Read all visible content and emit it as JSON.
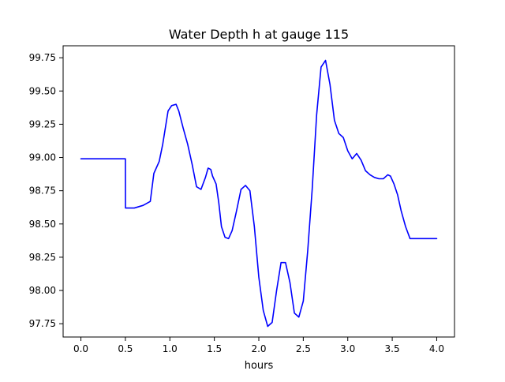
{
  "chart_data": {
    "type": "line",
    "title": "Water Depth h at gauge 115",
    "xlabel": "hours",
    "ylabel": "",
    "xlim": [
      -0.2,
      4.2
    ],
    "ylim": [
      97.65,
      99.84
    ],
    "x_ticks": [
      0.0,
      0.5,
      1.0,
      1.5,
      2.0,
      2.5,
      3.0,
      3.5,
      4.0
    ],
    "x_tick_labels": [
      "0.0",
      "0.5",
      "1.0",
      "1.5",
      "2.0",
      "2.5",
      "3.0",
      "3.5",
      "4.0"
    ],
    "y_ticks": [
      97.75,
      98.0,
      98.25,
      98.5,
      98.75,
      99.0,
      99.25,
      99.5,
      99.75
    ],
    "y_tick_labels": [
      "97.75",
      "98.00",
      "98.25",
      "98.50",
      "98.75",
      "99.00",
      "99.25",
      "99.50",
      "99.75"
    ],
    "grid": false,
    "legend": "none",
    "line_color": "#0000ff",
    "series": [
      {
        "x": [
          0.0,
          0.1,
          0.2,
          0.3,
          0.4,
          0.48,
          0.5,
          0.501,
          0.6,
          0.7,
          0.78,
          0.82,
          0.88,
          0.92,
          0.98,
          1.02,
          1.07,
          1.1,
          1.15,
          1.2,
          1.25,
          1.3,
          1.35,
          1.4,
          1.43,
          1.46,
          1.48,
          1.52,
          1.55,
          1.58,
          1.62,
          1.66,
          1.7,
          1.75,
          1.8,
          1.85,
          1.9,
          1.95,
          2.0,
          2.05,
          2.1,
          2.15,
          2.2,
          2.25,
          2.3,
          2.35,
          2.4,
          2.45,
          2.5,
          2.55,
          2.6,
          2.65,
          2.7,
          2.75,
          2.8,
          2.85,
          2.9,
          2.95,
          3.0,
          3.05,
          3.1,
          3.15,
          3.2,
          3.25,
          3.3,
          3.35,
          3.4,
          3.45,
          3.48,
          3.52,
          3.56,
          3.6,
          3.65,
          3.7,
          3.75,
          3.78,
          3.82,
          3.86,
          3.9,
          3.94,
          3.97,
          4.0
        ],
        "y": [
          98.99,
          98.99,
          98.99,
          98.99,
          98.99,
          98.99,
          98.99,
          98.62,
          98.62,
          98.64,
          98.67,
          98.88,
          98.97,
          99.1,
          99.35,
          99.39,
          99.4,
          99.35,
          99.22,
          99.1,
          98.95,
          98.78,
          98.76,
          98.85,
          98.92,
          98.91,
          98.86,
          98.8,
          98.66,
          98.48,
          98.4,
          98.39,
          98.45,
          98.6,
          98.76,
          98.79,
          98.75,
          98.48,
          98.1,
          97.85,
          97.73,
          97.76,
          98.0,
          98.21,
          98.21,
          98.06,
          97.83,
          97.8,
          97.92,
          98.3,
          98.76,
          99.32,
          99.68,
          99.73,
          99.55,
          99.28,
          99.18,
          99.15,
          99.05,
          98.99,
          99.03,
          98.98,
          98.9,
          98.87,
          98.85,
          98.84,
          98.84,
          98.87,
          98.86,
          98.8,
          98.72,
          98.6,
          98.48,
          98.39,
          98.39,
          98.39,
          98.39,
          98.39,
          98.39,
          98.39,
          98.39,
          98.39
        ]
      }
    ]
  }
}
